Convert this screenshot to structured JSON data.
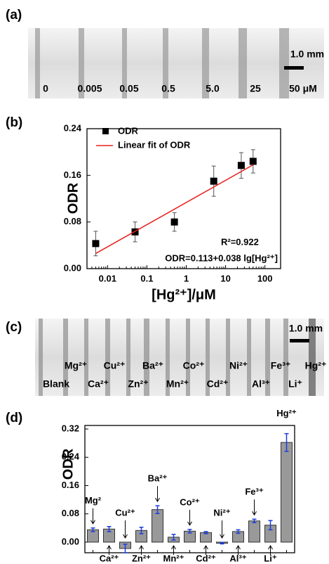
{
  "panel_a": {
    "label": "(a)",
    "scale": "1.0 mm",
    "lanes": [
      "0",
      "0.005",
      "0.05",
      "0.5",
      "5.0",
      "25",
      "50 μM"
    ]
  },
  "panel_c": {
    "label": "(c)",
    "scale": "1.0 mm",
    "top_labels": [
      "Mg²⁺",
      "Cu²⁺",
      "Ba²⁺",
      "Co²⁺",
      "Ni²⁺",
      "Fe³⁺",
      "Hg²⁺"
    ],
    "bottom_labels": [
      "Blank",
      "Ca²⁺",
      "Zn²⁺",
      "Mn²⁺",
      "Cd²⁺",
      "Al³⁺",
      "Li⁺"
    ]
  },
  "chart_data": [
    {
      "type": "scatter",
      "panel_label": "(b)",
      "x_label": "[Hg²⁺]/μM",
      "y_label": "ODR",
      "log_x": true,
      "xlim": [
        0.003,
        250
      ],
      "xticks": [
        0.01,
        0.1,
        1,
        10,
        100
      ],
      "ylim": [
        0,
        0.24
      ],
      "yticks": [
        {
          "value": 0,
          "label": "0.00"
        },
        0.08,
        0.16,
        0.24
      ],
      "series": [
        {
          "name": "ODR",
          "color": "#000000",
          "x": [
            0.005,
            0.05,
            0.5,
            5,
            25,
            50
          ],
          "values": [
            0.043,
            0.063,
            0.08,
            0.15,
            0.177,
            0.184
          ],
          "errors": [
            0.021,
            0.017,
            0.016,
            0.026,
            0.022,
            0.02
          ]
        },
        {
          "name": "Linear fit of ODR",
          "type": "line",
          "color": "#e8201c",
          "x": [
            0.005,
            50
          ],
          "values": [
            0.026,
            0.178
          ]
        }
      ],
      "annotations": [
        "R²=0.922",
        "ODR=0.113+0.038 lg[Hg²⁺]"
      ]
    },
    {
      "type": "bar",
      "panel_label": "(d)",
      "y_label": "ODR",
      "color": "#999999",
      "error_color": "#1a3de0",
      "ylim": [
        -0.03,
        0.33
      ],
      "yticks": [
        {
          "value": 0,
          "label": "0.00"
        },
        0.08,
        0.16,
        0.24,
        0.32
      ],
      "categories": [
        "Mg²",
        "Ca²⁺",
        "Cu²⁺",
        "Zn²⁺",
        "Ba²⁺",
        "Mn²⁺",
        "Co²⁺",
        "Cd²⁺",
        "Ni²⁺",
        "Al³⁺",
        "Fe³⁺",
        "Li⁺",
        "Hg²⁺"
      ],
      "values": [
        0.035,
        0.037,
        -0.018,
        0.033,
        0.092,
        0.014,
        0.031,
        0.027,
        -0.003,
        0.03,
        0.06,
        0.048,
        0.282
      ],
      "errors": [
        0.005,
        0.007,
        0.012,
        0.009,
        0.011,
        0.008,
        0.005,
        0.003,
        0.002,
        0.005,
        0.005,
        0.013,
        0.025
      ]
    }
  ]
}
